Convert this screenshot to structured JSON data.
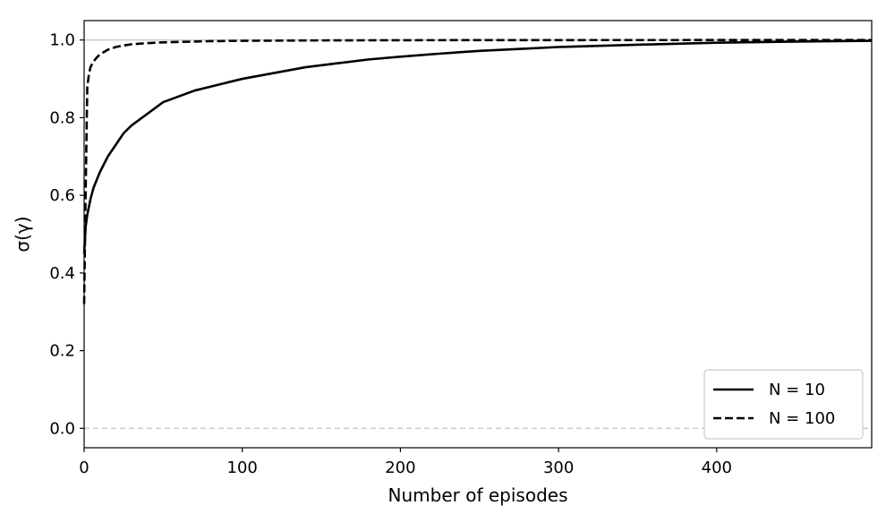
{
  "chart_data": {
    "type": "line",
    "xlabel": "Number of episodes",
    "ylabel": "σ(γ)",
    "xlim": [
      0,
      498
    ],
    "ylim": [
      -0.05,
      1.05
    ],
    "x_ticks": [
      0,
      100,
      200,
      300,
      400
    ],
    "x_tick_labels": [
      "0",
      "100",
      "200",
      "300",
      "400"
    ],
    "y_ticks": [
      0.0,
      0.2,
      0.4,
      0.6,
      0.8,
      1.0
    ],
    "y_tick_labels": [
      "0.0",
      "0.2",
      "0.4",
      "0.6",
      "0.8",
      "1.0"
    ],
    "reference_lines": [
      0.0,
      1.0
    ],
    "grid": false,
    "legend_position": "lower-right",
    "series": [
      {
        "name": "N = 10",
        "style": "solid",
        "color": "#000000",
        "x": [
          0,
          1,
          2,
          4,
          6,
          8,
          10,
          15,
          20,
          25,
          30,
          40,
          50,
          60,
          70,
          80,
          90,
          100,
          120,
          140,
          160,
          180,
          200,
          225,
          250,
          275,
          300,
          350,
          400,
          450,
          498
        ],
        "y": [
          0.45,
          0.52,
          0.55,
          0.59,
          0.62,
          0.64,
          0.66,
          0.7,
          0.73,
          0.76,
          0.78,
          0.81,
          0.84,
          0.855,
          0.87,
          0.88,
          0.89,
          0.9,
          0.915,
          0.93,
          0.94,
          0.95,
          0.957,
          0.965,
          0.972,
          0.977,
          0.982,
          0.988,
          0.993,
          0.996,
          0.998
        ]
      },
      {
        "name": "N = 100",
        "style": "dashed",
        "color": "#000000",
        "x": [
          0,
          1,
          2,
          3,
          4,
          6,
          8,
          10,
          15,
          20,
          25,
          30,
          40,
          50,
          60,
          80,
          100,
          150,
          200,
          300,
          400,
          498
        ],
        "y": [
          0.32,
          0.62,
          0.88,
          0.91,
          0.93,
          0.945,
          0.955,
          0.963,
          0.975,
          0.982,
          0.986,
          0.989,
          0.992,
          0.994,
          0.995,
          0.997,
          0.998,
          0.999,
          0.9995,
          0.9998,
          0.9999,
          1.0
        ]
      }
    ]
  }
}
